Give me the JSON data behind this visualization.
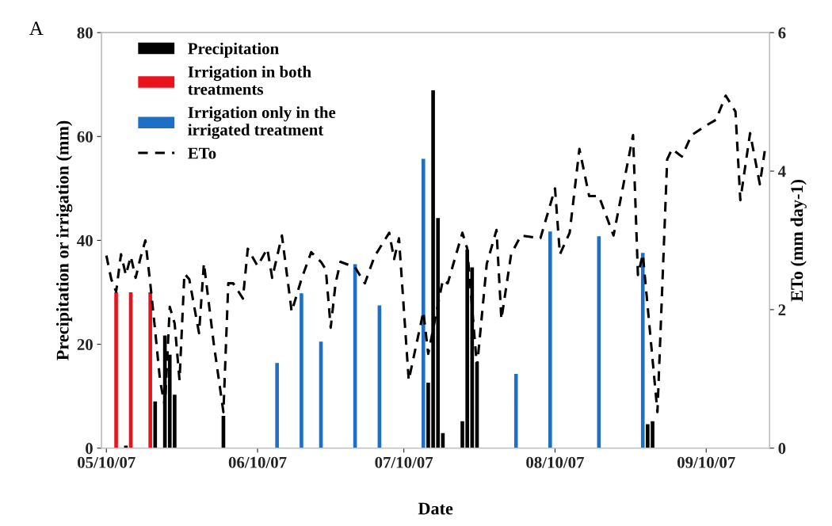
{
  "chart_data": {
    "type": "bar",
    "xlabel": "Date",
    "ylabel": "Precipitation or irrigation (mm)",
    "y2label": "ETo (mm day-1)",
    "annotations": [
      "A"
    ],
    "xlim": [
      "2007-05-09",
      "2007-09-23"
    ],
    "xticks": [
      {
        "value": "2007-05-10",
        "label": "05/10/07"
      },
      {
        "value": "2007-06-10",
        "label": "06/10/07"
      },
      {
        "value": "2007-07-10",
        "label": "07/10/07"
      },
      {
        "value": "2007-08-10",
        "label": "08/10/07"
      },
      {
        "value": "2007-09-10",
        "label": "09/10/07"
      }
    ],
    "ylim": [
      0,
      80
    ],
    "yticks": [
      0,
      20,
      40,
      60,
      80
    ],
    "y2lim": [
      0,
      6
    ],
    "y2ticks": [
      0,
      2,
      4,
      6
    ],
    "grid": false,
    "legend": "top left",
    "series": [
      {
        "name": "Precipitation",
        "color": "#000000",
        "x": [
          "2007-05-14",
          "2007-05-20",
          "2007-05-22",
          "2007-05-23",
          "2007-05-24",
          "2007-06-03",
          "2007-07-15",
          "2007-07-16",
          "2007-07-17",
          "2007-07-18",
          "2007-07-22",
          "2007-07-23",
          "2007-07-24",
          "2007-07-25",
          "2007-08-29",
          "2007-08-30"
        ],
        "values": [
          0.5,
          9,
          21.7,
          18,
          10.3,
          6.2,
          12.6,
          68.9,
          44.3,
          2.9,
          5.2,
          38.2,
          34.8,
          16.6,
          4.6,
          5.2
        ]
      },
      {
        "name": "Irrigation in both treatments",
        "color": "#e8141b",
        "x": [
          "2007-05-12",
          "2007-05-15",
          "2007-05-19"
        ],
        "values": [
          30,
          30,
          30
        ]
      },
      {
        "name": "Irrigation only in the irrigated treatment",
        "color": "#1f6fc5",
        "x": [
          "2007-06-14",
          "2007-06-19",
          "2007-06-23",
          "2007-06-30",
          "2007-07-05",
          "2007-07-14",
          "2007-08-02",
          "2007-08-09",
          "2007-08-19",
          "2007-08-28"
        ],
        "values": [
          16.4,
          29.8,
          20.5,
          35.4,
          27.5,
          55.7,
          14.3,
          41.7,
          40.8,
          37.6
        ]
      },
      {
        "name": "ETo",
        "type": "line",
        "axis": "y2",
        "color": "#000000",
        "line_style": "dashed",
        "x": [
          "2007-05-10",
          "2007-05-11",
          "2007-05-12",
          "2007-05-13",
          "2007-05-14",
          "2007-05-15",
          "2007-05-16",
          "2007-05-17",
          "2007-05-18",
          "2007-05-19",
          "2007-05-20",
          "2007-05-21",
          "2007-05-22",
          "2007-05-23",
          "2007-05-24",
          "2007-05-25",
          "2007-05-26",
          "2007-05-27",
          "2007-05-29",
          "2007-05-30",
          "2007-06-01",
          "2007-06-03",
          "2007-06-04",
          "2007-06-05",
          "2007-06-07",
          "2007-06-08",
          "2007-06-10",
          "2007-06-12",
          "2007-06-13",
          "2007-06-15",
          "2007-06-17",
          "2007-06-19",
          "2007-06-21",
          "2007-06-23",
          "2007-06-24",
          "2007-06-25",
          "2007-06-26",
          "2007-06-27",
          "2007-06-30",
          "2007-07-02",
          "2007-07-04",
          "2007-07-07",
          "2007-07-08",
          "2007-07-09",
          "2007-07-11",
          "2007-07-14",
          "2007-07-15",
          "2007-07-18",
          "2007-07-19",
          "2007-07-22",
          "2007-07-23",
          "2007-07-25",
          "2007-07-27",
          "2007-07-29",
          "2007-07-30",
          "2007-08-01",
          "2007-08-03",
          "2007-08-07",
          "2007-08-10",
          "2007-08-11",
          "2007-08-13",
          "2007-08-15",
          "2007-08-17",
          "2007-08-19",
          "2007-08-22",
          "2007-08-26",
          "2007-08-27",
          "2007-08-28",
          "2007-08-31",
          "2007-09-02",
          "2007-09-03",
          "2007-09-05",
          "2007-09-07",
          "2007-09-10",
          "2007-09-12",
          "2007-09-14",
          "2007-09-16",
          "2007-09-17",
          "2007-09-19",
          "2007-09-21",
          "2007-09-22"
        ],
        "values": [
          2.78,
          2.44,
          2.26,
          2.8,
          2.5,
          2.77,
          2.46,
          2.75,
          3.0,
          2.38,
          1.7,
          0.98,
          0.6,
          2.04,
          1.8,
          0.98,
          2.52,
          2.44,
          1.66,
          2.67,
          1.52,
          0.52,
          2.38,
          2.38,
          2.16,
          2.88,
          2.63,
          2.88,
          2.46,
          3.07,
          1.97,
          2.44,
          2.83,
          2.69,
          2.58,
          1.74,
          2.38,
          2.69,
          2.61,
          2.38,
          2.77,
          3.11,
          2.73,
          3.03,
          0.98,
          1.97,
          1.36,
          2.43,
          2.38,
          3.11,
          2.88,
          1.17,
          2.66,
          3.15,
          1.86,
          2.8,
          3.07,
          3.03,
          3.75,
          2.8,
          3.11,
          4.32,
          3.64,
          3.64,
          3.07,
          4.52,
          2.5,
          2.8,
          0.52,
          4.17,
          4.32,
          4.21,
          4.52,
          4.66,
          4.74,
          5.09,
          4.86,
          3.58,
          4.55,
          3.81,
          4.29
        ]
      }
    ]
  }
}
